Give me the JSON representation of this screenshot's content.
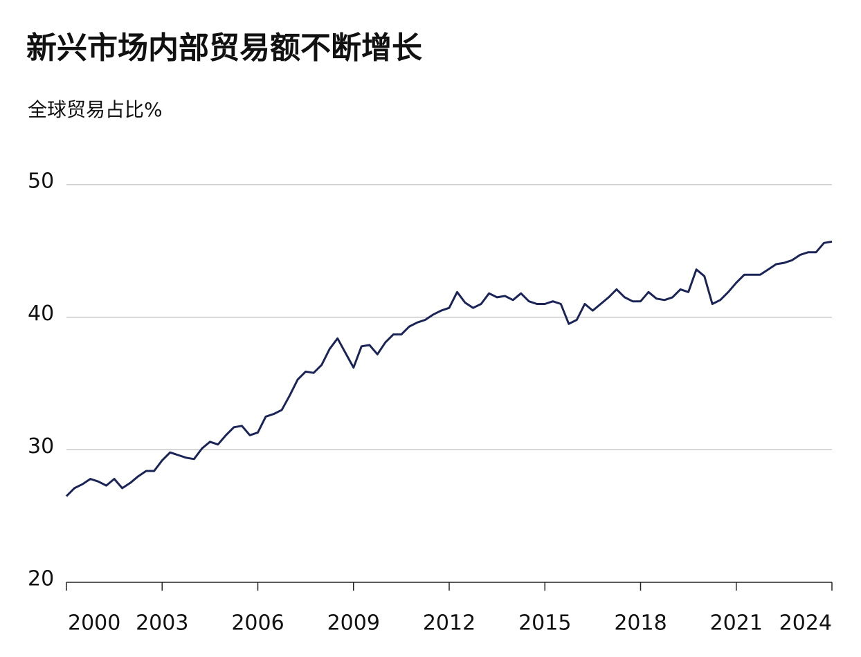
{
  "chart_data": {
    "type": "line",
    "title": "新兴市场内部贸易额不断增长",
    "subtitle": "全球贸易占比%",
    "x": [
      2000,
      2000.25,
      2000.5,
      2000.75,
      2001,
      2001.25,
      2001.5,
      2001.75,
      2002,
      2002.25,
      2002.5,
      2002.75,
      2003,
      2003.25,
      2003.5,
      2003.75,
      2004,
      2004.25,
      2004.5,
      2004.75,
      2005,
      2005.25,
      2005.5,
      2005.75,
      2006,
      2006.25,
      2006.5,
      2006.75,
      2007,
      2007.25,
      2007.5,
      2007.75,
      2008,
      2008.25,
      2008.5,
      2008.75,
      2009,
      2009.25,
      2009.5,
      2009.75,
      2010,
      2010.25,
      2010.5,
      2010.75,
      2011,
      2011.25,
      2011.5,
      2011.75,
      2012,
      2012.25,
      2012.5,
      2012.75,
      2013,
      2013.25,
      2013.5,
      2013.75,
      2014,
      2014.25,
      2014.5,
      2014.75,
      2015,
      2015.25,
      2015.5,
      2015.75,
      2016,
      2016.25,
      2016.5,
      2016.75,
      2017,
      2017.25,
      2017.5,
      2017.75,
      2018,
      2018.25,
      2018.5,
      2018.75,
      2019,
      2019.25,
      2019.5,
      2019.75,
      2020,
      2020.25,
      2020.5,
      2020.75,
      2021,
      2021.25,
      2021.5,
      2021.75,
      2022,
      2022.25,
      2022.5,
      2022.75,
      2023,
      2023.25,
      2023.5,
      2023.75,
      2024
    ],
    "series": [
      {
        "color": "#1a2456",
        "values": [
          26.5,
          27.1,
          27.4,
          27.8,
          27.6,
          27.3,
          27.8,
          27.1,
          27.5,
          28.0,
          28.4,
          28.4,
          29.2,
          29.8,
          29.6,
          29.4,
          29.3,
          30.1,
          30.6,
          30.4,
          31.1,
          31.7,
          31.8,
          31.1,
          31.3,
          32.5,
          32.7,
          33.0,
          34.1,
          35.3,
          35.9,
          35.8,
          36.4,
          37.6,
          38.4,
          37.3,
          36.2,
          37.8,
          37.9,
          37.2,
          38.1,
          38.7,
          38.7,
          39.3,
          39.6,
          39.8,
          40.2,
          40.5,
          40.7,
          41.9,
          41.1,
          40.7,
          41.0,
          41.8,
          41.5,
          41.6,
          41.3,
          41.8,
          41.2,
          41.0,
          41.0,
          41.2,
          41.0,
          39.5,
          39.8,
          41.0,
          40.5,
          41.0,
          41.5,
          42.1,
          41.5,
          41.2,
          41.2,
          41.9,
          41.4,
          41.3,
          41.5,
          42.1,
          41.9,
          43.6,
          43.1,
          41.0,
          41.3,
          41.9,
          42.6,
          43.2,
          43.2,
          43.2,
          43.6,
          44.0,
          44.1,
          44.3,
          44.7,
          44.9,
          44.9,
          45.6,
          45.7
        ]
      }
    ],
    "xlim": [
      2000,
      2024
    ],
    "xticks": [
      2000,
      2003,
      2006,
      2009,
      2012,
      2015,
      2018,
      2021,
      2024
    ],
    "ylim": [
      20,
      50
    ],
    "yticks": [
      20,
      30,
      40,
      50
    ],
    "grid": true
  }
}
